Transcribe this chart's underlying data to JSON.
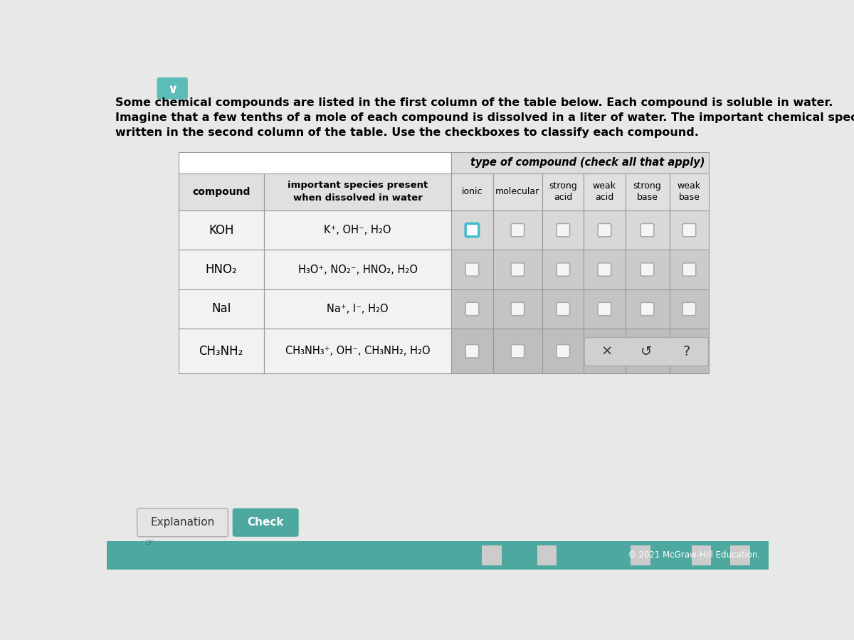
{
  "page_bg": "#e8e8e8",
  "header_bg": "#f0f0f0",
  "title_line1": "Some chemical compounds are listed in the first column of the table below. Each compound is soluble in water.",
  "title_line2": "Imagine that a few tenths of a mole of each compound is dissolved in a liter of water. The important chemical species that",
  "title_line3": "written in the second column of the table. Use the checkboxes to classify each compound.",
  "chevron_bg": "#5bbcb8",
  "table_outer_bg": "#ffffff",
  "table_border": "#aaaaaa",
  "header_row_bg": "#e0e0e0",
  "subheader_row_bg": "#e5e5e5",
  "data_row_bg_left": "#f0f0f0",
  "data_row_bg_right_1": "#d8d8d8",
  "data_row_bg_right_2": "#cccccc",
  "data_row_bg_right_3": "#c8c8c8",
  "data_row_bg_right_4": "#c4c4c4",
  "checkbox_default_fc": "#f5f5f5",
  "checkbox_default_ec": "#aaaaaa",
  "checkbox_highlighted_ec": "#44bbcc",
  "checkbox_highlighted_fc": "#ffffff",
  "type_header_text": "type of compound (check all that apply)",
  "col_sub_labels": [
    "ionic",
    "molecular",
    "strong\nacid",
    "weak\nacid",
    "strong\nbase",
    "weak\nbase"
  ],
  "compound_col_label": "compound",
  "species_col_label": "important species present\nwhen dissolved in water",
  "compounds": [
    "KOH",
    "HNO₂",
    "NaI",
    "CH₃NH₂"
  ],
  "species_lines": [
    "K⁺, OH⁻, H₂O",
    "H₃O⁺, NO₂⁻, HNO₂, H₂O",
    "Na⁺, I⁻, H₂O",
    "CH₃NH₃⁺, OH⁻, CH₃NH₂, H₂O"
  ],
  "btn_area_bg": "#c8c8c8",
  "btn_x_label": "×",
  "btn_undo_label": "↺",
  "btn_q_label": "?",
  "explanation_btn_label": "Explanation",
  "check_btn_label": "Check",
  "check_btn_color": "#4da8a0",
  "explanation_btn_color": "#e8e8e8",
  "footer_bar_color": "#4da8a0",
  "footer_text": "© 2021 McGraw-Hill Education.",
  "footer_text_color": "#ffffff"
}
